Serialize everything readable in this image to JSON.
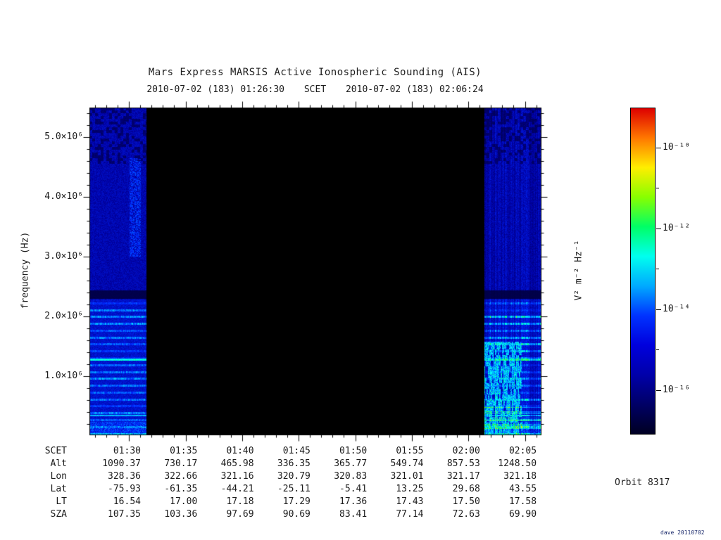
{
  "title": "Mars Express MARSIS Active Ionospheric Sounding (AIS)",
  "subtitle": {
    "start": "2010-07-02 (183) 01:26:30",
    "scet_label": "SCET",
    "end": "2010-07-02 (183) 02:06:24"
  },
  "orbit_label": "Orbit 8317",
  "watermark": "dave 20110702",
  "chart_data": {
    "type": "heatmap",
    "subtype": "radar-sounder-spectrogram",
    "title": "Mars Express MARSIS Active Ionospheric Sounding (AIS)",
    "x_start_scet": "2010-07-02 (183) 01:26:30",
    "x_end_scet": "2010-07-02 (183) 02:06:24",
    "x_axis_label": "SCET",
    "x_tick_labels": [
      "01:30",
      "01:35",
      "01:40",
      "01:45",
      "01:50",
      "01:55",
      "02:00",
      "02:05"
    ],
    "ylabel": "frequency (Hz)",
    "y_tick_labels_top_down": [
      "5.0×10⁶",
      "4.0×10⁶",
      "3.0×10⁶",
      "2.0×10⁶",
      "1.0×10⁶"
    ],
    "ylim_hz": [
      20000,
      5470000
    ],
    "grid": "off",
    "colorbar": {
      "label": "V² m⁻² Hz⁻¹",
      "scale": "log",
      "tick_labels": [
        "10⁻¹⁰",
        "10⁻¹²",
        "10⁻¹⁴",
        "10⁻¹⁶"
      ],
      "range_top_to_bottom": [
        "1e-9",
        "1e-17"
      ],
      "colors_top_to_bottom": [
        "#dd0000",
        "#ff7700",
        "#ffee00",
        "#88ff00",
        "#00ff66",
        "#00ffee",
        "#00aaff",
        "#0033ff",
        "#0000dd",
        "#0000aa",
        "#000066",
        "#000022"
      ]
    },
    "data_coverage": [
      {
        "from": "01:26:30",
        "to": "01:31:30",
        "appearance": "blue noise spectrum; fine cyan harmonic lines below 2.3 MHz; bright cyan line near 1.3 MHz; dark absorption band 2.3-2.4 MHz; dark patches above 4.6 MHz; faint cyan vertical streak 3-4.6 MHz"
      },
      {
        "from": "02:01:30",
        "to": "02:06:24",
        "appearance": "blue noise with vertical striping; strong cyan-green ionospheric echo patches below 1.6 MHz; bright cyan line near 1.3 MHz; dark absorption band 2.3-2.4 MHz"
      }
    ],
    "gap": {
      "from": "01:31:30",
      "to": "02:01:30",
      "appearance": "black (no data)"
    }
  },
  "table": {
    "rows": [
      {
        "label": "SCET",
        "values": [
          "01:30",
          "01:35",
          "01:40",
          "01:45",
          "01:50",
          "01:55",
          "02:00",
          "02:05"
        ]
      },
      {
        "label": "Alt",
        "values": [
          "1090.37",
          "730.17",
          "465.98",
          "336.35",
          "365.77",
          "549.74",
          "857.53",
          "1248.50"
        ]
      },
      {
        "label": "Lon",
        "values": [
          "328.36",
          "322.66",
          "321.16",
          "320.79",
          "320.83",
          "321.01",
          "321.17",
          "321.18"
        ]
      },
      {
        "label": "Lat",
        "values": [
          "-75.93",
          "-61.35",
          "-44.21",
          "-25.11",
          "-5.41",
          "13.25",
          "29.68",
          "43.55"
        ]
      },
      {
        "label": "LT",
        "values": [
          "16.54",
          "17.00",
          "17.18",
          "17.29",
          "17.36",
          "17.43",
          "17.50",
          "17.58"
        ]
      },
      {
        "label": "SZA",
        "values": [
          "107.35",
          "103.36",
          "97.69",
          "90.69",
          "83.41",
          "77.14",
          "72.63",
          "69.90"
        ]
      }
    ]
  }
}
